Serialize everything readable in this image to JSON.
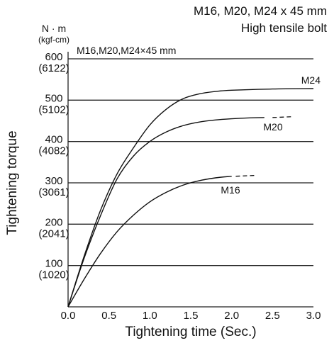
{
  "header": {
    "line1": "M16, M20, M24 x 45 mm",
    "line2": "High tensile bolt"
  },
  "chart_data": {
    "type": "line",
    "subtitle": "M16,M20,M24×45 mm",
    "xlabel": "Tightening time (Sec.)",
    "ylabel": "Tightening torque",
    "yunit_primary": "N · m",
    "yunit_secondary": "(kgf-cm)",
    "xlim": [
      0,
      3.0
    ],
    "ylim": [
      0,
      600
    ],
    "grid": "horizontal",
    "x_ticks": [
      "0.0",
      "0.5",
      "1.0",
      "1.5",
      "2.0",
      "2.5",
      "3.0"
    ],
    "y_ticks": [
      {
        "value": 100,
        "label": "100",
        "sub": "(1020)"
      },
      {
        "value": 200,
        "label": "200",
        "sub": "(2041)"
      },
      {
        "value": 300,
        "label": "300",
        "sub": "(3061)"
      },
      {
        "value": 400,
        "label": "400",
        "sub": "(4082)"
      },
      {
        "value": 500,
        "label": "500",
        "sub": "(5102)"
      },
      {
        "value": 600,
        "label": "600",
        "sub": "(6122)"
      }
    ],
    "series": [
      {
        "name": "M24",
        "x": [
          0,
          0.2,
          0.4,
          0.6,
          0.8,
          1.0,
          1.2,
          1.4,
          1.6,
          1.8,
          2.0,
          2.5,
          3.0
        ],
        "y": [
          0,
          125,
          235,
          322,
          385,
          440,
          478,
          503,
          515,
          521,
          524,
          527,
          528
        ]
      },
      {
        "name": "M20",
        "x": [
          0,
          0.2,
          0.4,
          0.6,
          0.8,
          1.0,
          1.2,
          1.4,
          1.6,
          1.8,
          2.0,
          2.2,
          2.4
        ],
        "y": [
          0,
          120,
          222,
          310,
          365,
          400,
          423,
          438,
          447,
          452,
          455,
          457,
          458
        ],
        "dashed_x": [
          2.5,
          2.75
        ],
        "dashed_y": [
          458,
          460
        ]
      },
      {
        "name": "M16",
        "x": [
          0,
          0.2,
          0.4,
          0.6,
          0.8,
          1.0,
          1.2,
          1.4,
          1.6,
          1.8,
          2.0
        ],
        "y": [
          0,
          68,
          130,
          182,
          222,
          254,
          277,
          294,
          305,
          312,
          316
        ],
        "dashed_x": [
          2.05,
          2.3
        ],
        "dashed_y": [
          316,
          318
        ]
      }
    ]
  }
}
